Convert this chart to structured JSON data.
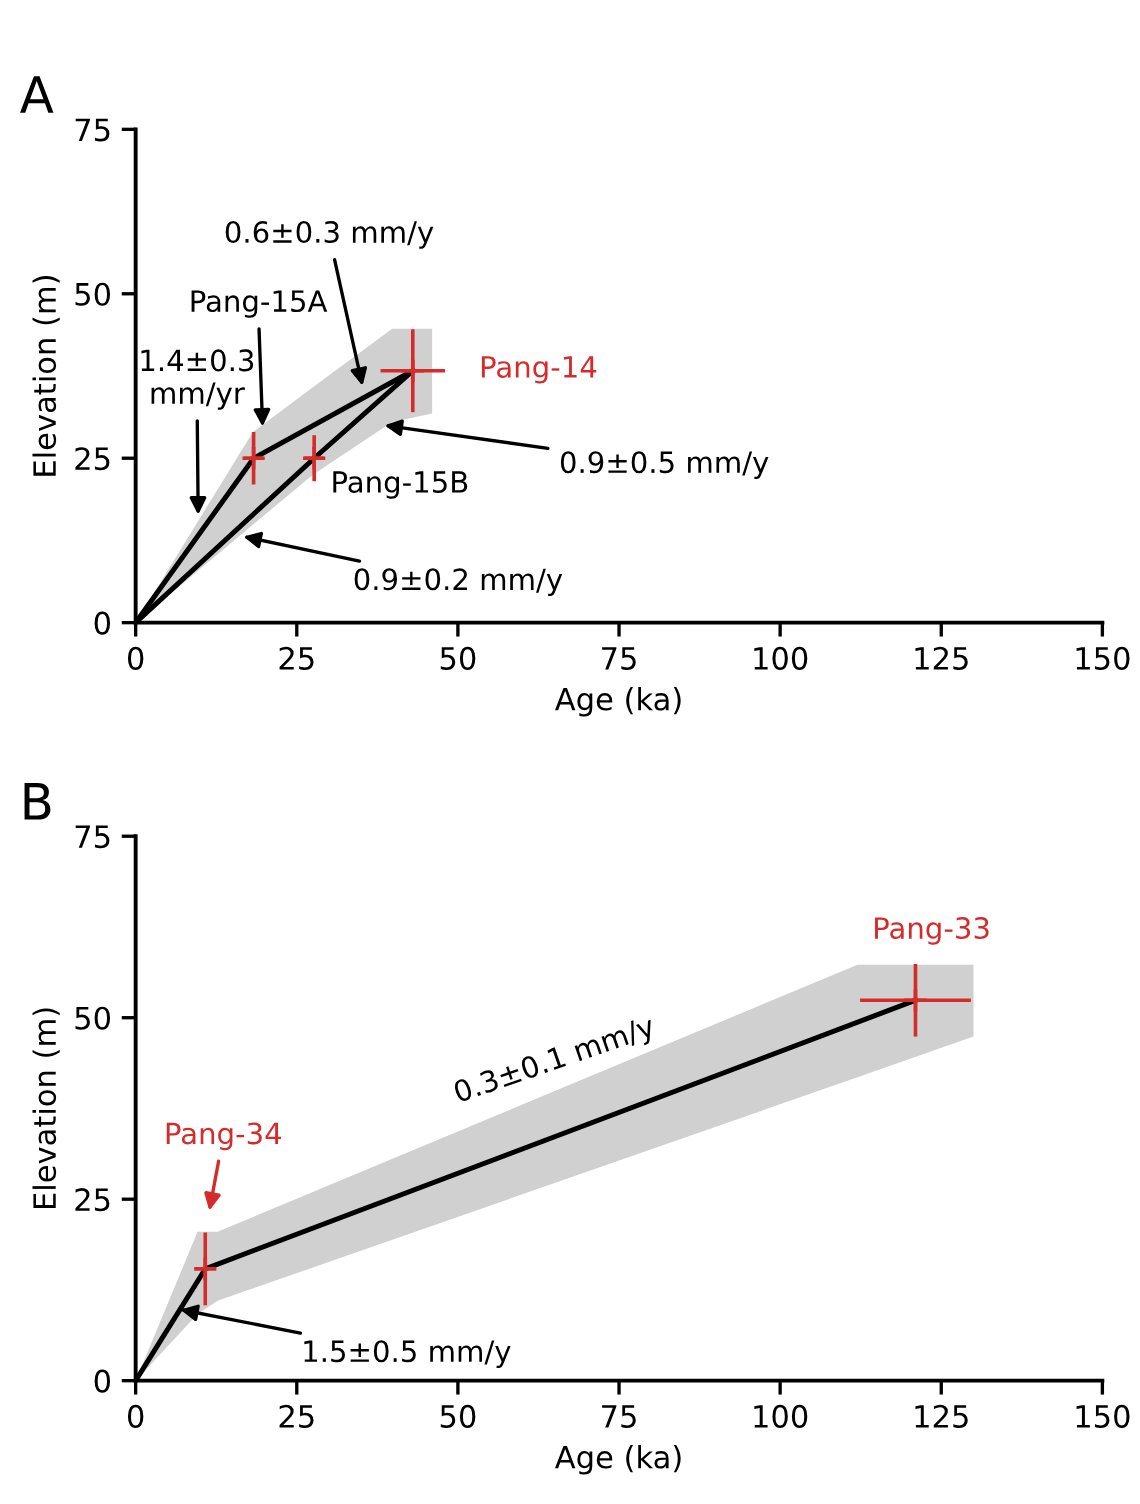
{
  "chart_data": [
    {
      "type": "line",
      "title": "A",
      "xlabel": "Age (ka)",
      "ylabel": "Elevation (m)",
      "xlim": [
        0,
        150
      ],
      "ylim": [
        0,
        75
      ],
      "xticks": [
        0,
        25,
        50,
        75,
        100,
        125,
        150
      ],
      "yticks": [
        0,
        25,
        50,
        75
      ],
      "grid": false,
      "legend": false,
      "series": [
        {
          "type": "line",
          "color": "#d0d0d0",
          "x": [
            0,
            18.2,
            27.5,
            39.8,
            46
          ],
          "values": [
            null,
            null,
            null,
            null,
            null
          ],
          "lower": [
            0,
            14.9,
            22.5,
            30.5,
            31.8
          ],
          "upper": [
            0,
            29,
            35.8,
            44.7,
            44.7
          ]
        },
        {
          "color": "#000000",
          "x": [
            0,
            18.3,
            43
          ],
          "values": [
            0,
            25,
            38.3
          ]
        },
        {
          "color": "#000000",
          "x": [
            0,
            27.7,
            43
          ],
          "values": [
            0,
            25,
            38.3
          ]
        },
        {
          "type": "scatter",
          "color": "#d62b2b",
          "marker": "cross",
          "x": [
            18.3,
            27.7,
            43
          ],
          "values": [
            25,
            25,
            38.3
          ],
          "errors": [
            4,
            3.5,
            6.3
          ],
          "xerrors": [
            1.5,
            1.5,
            5
          ]
        }
      ],
      "annotations": [
        {
          "text": "0.6±0.3 mm/y",
          "x": 35.2,
          "y": 36
        },
        {
          "text": "Pang-15A",
          "x": 19.7,
          "y": 29.8
        },
        {
          "text": "1.4±0.3\nmm/yr",
          "x": 9.7,
          "y": 16.4
        },
        {
          "text": "Pang-14",
          "x": 43,
          "y": 38.3
        },
        {
          "text": "0.9±0.5 mm/y",
          "x": 38.6,
          "y": 30
        },
        {
          "text": "Pang-15B",
          "x": 27.7,
          "y": 25
        },
        {
          "text": "0.9±0.2 mm/y",
          "x": 16.7,
          "y": 13.1
        }
      ]
    },
    {
      "type": "line",
      "title": "B",
      "xlabel": "Age (ka)",
      "ylabel": "Elevation (m)",
      "xlim": [
        0,
        150
      ],
      "ylim": [
        0,
        75
      ],
      "xticks": [
        0,
        25,
        50,
        75,
        100,
        125,
        150
      ],
      "yticks": [
        0,
        25,
        50,
        75
      ],
      "grid": false,
      "legend": false,
      "series": [
        {
          "type": "line",
          "color": "#d0d0d0",
          "x": [
            0,
            9.6,
            12.7,
            112,
            130
          ],
          "values": [
            null,
            null,
            null,
            null,
            null
          ],
          "lower": [
            0,
            9.2,
            11,
            41.8,
            47.4
          ],
          "upper": [
            0,
            20.5,
            20.5,
            57.3,
            57.3
          ]
        },
        {
          "color": "#000000",
          "x": [
            0,
            10.8,
            121
          ],
          "values": [
            0,
            15.4,
            52.4
          ]
        },
        {
          "type": "scatter",
          "color": "#d62b2b",
          "marker": "cross",
          "x": [
            10.8,
            121
          ],
          "values": [
            15.4,
            52.4
          ],
          "errors": [
            5,
            5
          ],
          "xerrors": [
            null,
            8.6
          ]
        }
      ],
      "annotations": [
        {
          "text": "Pang-34",
          "x": 10.8,
          "y": 20.4
        },
        {
          "text": "Pang-33",
          "x": 121,
          "y": 52.4
        },
        {
          "text": "0.3±0.1 mm/y",
          "x": 65,
          "y": 33.6
        },
        {
          "text": "1.5±0.5 mm/y",
          "x": 6.9,
          "y": 9.8
        }
      ]
    }
  ]
}
